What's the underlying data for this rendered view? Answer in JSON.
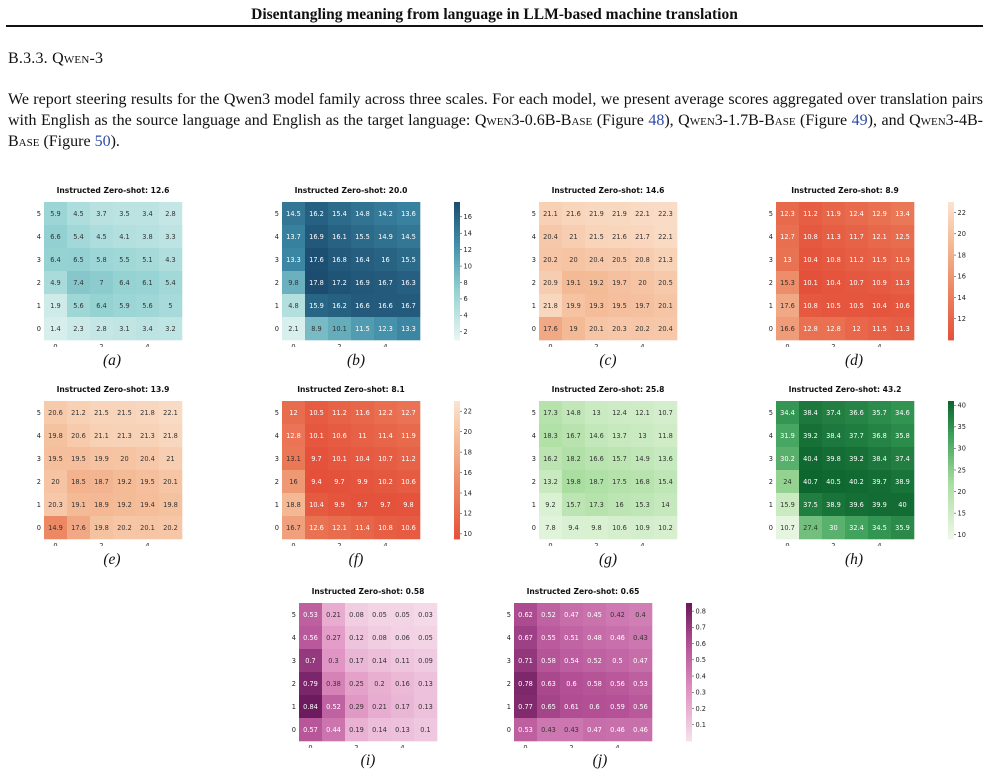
{
  "header": {
    "title": "Disentangling meaning from language in LLM-based machine translation"
  },
  "section_title": {
    "number": "B.3.3.",
    "name": "Qwen-3"
  },
  "paragraph": {
    "p1": "We report steering results for the Qwen3 model family across three scales. For each model, we present average scores aggregated over translation pairs with English as the source language and English as the target language: ",
    "m1": "Qwen3-0.6B-Base",
    "f1_pre": " (Figure ",
    "f1": "48",
    "f1_post": "), ",
    "m2": "Qwen3-1.7B-Base",
    "f2_pre": " (Figure ",
    "f2": "49",
    "f2_post": "), and ",
    "m3": "Qwen3-4B-Base",
    "f3_pre": " (Figure ",
    "f3": "50",
    "f3_post": ")."
  },
  "chart_data": [
    {
      "id": "a",
      "type": "heatmap",
      "title": "Instructed Zero-shot: 12.6",
      "caption": "(a)",
      "rows": [
        "5",
        "4",
        "3",
        "2",
        "1",
        "0"
      ],
      "cols": [
        "0",
        "",
        "2",
        "",
        "4",
        ""
      ],
      "values": [
        [
          5.9,
          4.5,
          3.7,
          3.5,
          3.4,
          2.8
        ],
        [
          6.6,
          5.4,
          4.5,
          4.1,
          3.8,
          3.3
        ],
        [
          6.4,
          6.5,
          5.8,
          5.5,
          5.1,
          4.3
        ],
        [
          4.9,
          7.4,
          7.0,
          6.4,
          6.1,
          5.4
        ],
        [
          1.9,
          5.6,
          6.4,
          5.9,
          5.6,
          5.0
        ],
        [
          1.4,
          2.3,
          2.8,
          3.1,
          3.4,
          3.2
        ]
      ],
      "colormap": "teal",
      "vmin": 0,
      "vmax": 18,
      "colorbar": false,
      "ticks": [],
      "decimals": 1
    },
    {
      "id": "b",
      "type": "heatmap",
      "title": "Instructed Zero-shot: 20.0",
      "caption": "(b)",
      "rows": [
        "5",
        "4",
        "3",
        "2",
        "1",
        "0"
      ],
      "cols": [
        "0",
        "",
        "2",
        "",
        "4",
        ""
      ],
      "values": [
        [
          14.5,
          16.2,
          15.4,
          14.8,
          14.2,
          13.6
        ],
        [
          13.7,
          16.9,
          16.1,
          15.5,
          14.9,
          14.5
        ],
        [
          13.3,
          17.6,
          16.8,
          16.4,
          16.0,
          15.5
        ],
        [
          9.8,
          17.8,
          17.2,
          16.9,
          16.7,
          16.3
        ],
        [
          4.8,
          15.9,
          16.2,
          16.6,
          16.6,
          16.7
        ],
        [
          2.1,
          8.9,
          10.1,
          11.5,
          12.3,
          13.3
        ]
      ],
      "colormap": "teal",
      "vmin": 1,
      "vmax": 17.8,
      "colorbar": true,
      "ticks": [
        2,
        4,
        6,
        8,
        10,
        12,
        14,
        16
      ],
      "decimals": 1
    },
    {
      "id": "c",
      "type": "heatmap",
      "title": "Instructed Zero-shot: 14.6",
      "caption": "(c)",
      "rows": [
        "5",
        "4",
        "3",
        "2",
        "1",
        "0"
      ],
      "cols": [
        "0",
        "",
        "2",
        "",
        "4",
        ""
      ],
      "values": [
        [
          21.1,
          21.6,
          21.9,
          21.9,
          22.1,
          22.3
        ],
        [
          20.4,
          21.0,
          21.5,
          21.6,
          21.7,
          22.1
        ],
        [
          20.2,
          20.0,
          20.4,
          20.5,
          20.8,
          21.3
        ],
        [
          20.9,
          19.1,
          19.2,
          19.7,
          20.0,
          20.5
        ],
        [
          21.8,
          19.9,
          19.3,
          19.5,
          19.7,
          20.1
        ],
        [
          17.6,
          19.0,
          20.1,
          20.3,
          20.2,
          20.4
        ]
      ],
      "colormap": "orange",
      "vmin": 10,
      "vmax": 23,
      "colorbar": false,
      "ticks": [],
      "decimals": 1
    },
    {
      "id": "d",
      "type": "heatmap",
      "title": "Instructed Zero-shot: 8.9",
      "caption": "(d)",
      "rows": [
        "5",
        "4",
        "3",
        "2",
        "1",
        "0"
      ],
      "cols": [
        "0",
        "",
        "2",
        "",
        "4",
        ""
      ],
      "values": [
        [
          12.3,
          11.2,
          11.9,
          12.4,
          12.9,
          13.4
        ],
        [
          12.7,
          10.8,
          11.3,
          11.7,
          12.1,
          12.5
        ],
        [
          13.0,
          10.4,
          10.8,
          11.2,
          11.5,
          11.9
        ],
        [
          15.3,
          10.1,
          10.4,
          10.7,
          10.9,
          11.3
        ],
        [
          17.6,
          10.8,
          10.5,
          10.5,
          10.4,
          10.6
        ],
        [
          16.6,
          12.8,
          12.8,
          12.0,
          11.5,
          11.3
        ]
      ],
      "colormap": "orange",
      "vmin": 10,
      "vmax": 23,
      "colorbar": true,
      "ticks": [
        12,
        14,
        16,
        18,
        20,
        22
      ],
      "decimals": 1
    },
    {
      "id": "e",
      "type": "heatmap",
      "title": "Instructed Zero-shot: 13.9",
      "caption": "(e)",
      "rows": [
        "5",
        "4",
        "3",
        "2",
        "1",
        "0"
      ],
      "cols": [
        "0",
        "",
        "2",
        "",
        "4",
        ""
      ],
      "values": [
        [
          20.6,
          21.2,
          21.5,
          21.5,
          21.8,
          22.1
        ],
        [
          19.8,
          20.6,
          21.1,
          21.3,
          21.3,
          21.8
        ],
        [
          19.5,
          19.5,
          19.9,
          20.0,
          20.4,
          21.0
        ],
        [
          20.0,
          18.5,
          18.7,
          19.2,
          19.5,
          20.1
        ],
        [
          20.3,
          19.1,
          18.9,
          19.2,
          19.4,
          19.8
        ],
        [
          14.9,
          17.6,
          19.8,
          20.2,
          20.1,
          20.2
        ]
      ],
      "colormap": "orange",
      "vmin": 10,
      "vmax": 23,
      "colorbar": false,
      "ticks": [],
      "decimals": 1
    },
    {
      "id": "f",
      "type": "heatmap",
      "title": "Instructed Zero-shot: 8.1",
      "caption": "(f)",
      "rows": [
        "5",
        "4",
        "3",
        "2",
        "1",
        "0"
      ],
      "cols": [
        "0",
        "",
        "2",
        "",
        "4",
        ""
      ],
      "values": [
        [
          12.0,
          10.5,
          11.2,
          11.6,
          12.2,
          12.7
        ],
        [
          12.8,
          10.1,
          10.6,
          11.0,
          11.4,
          11.9
        ],
        [
          13.1,
          9.7,
          10.1,
          10.4,
          10.7,
          11.2
        ],
        [
          16.0,
          9.4,
          9.7,
          9.9,
          10.2,
          10.6
        ],
        [
          18.8,
          10.4,
          9.9,
          9.7,
          9.7,
          9.8
        ],
        [
          16.7,
          12.6,
          12.1,
          11.4,
          10.8,
          10.6
        ]
      ],
      "colormap": "orange",
      "vmin": 9.5,
      "vmax": 23,
      "colorbar": true,
      "ticks": [
        10,
        12,
        14,
        16,
        18,
        20,
        22
      ],
      "decimals": 1
    },
    {
      "id": "g",
      "type": "heatmap",
      "title": "Instructed Zero-shot: 25.8",
      "caption": "(g)",
      "rows": [
        "5",
        "4",
        "3",
        "2",
        "1",
        "0"
      ],
      "cols": [
        "0",
        "",
        "2",
        "",
        "4",
        ""
      ],
      "values": [
        [
          17.3,
          14.8,
          13.0,
          12.4,
          12.1,
          10.7
        ],
        [
          18.3,
          16.7,
          14.6,
          13.7,
          13.0,
          11.8
        ],
        [
          16.2,
          18.2,
          16.6,
          15.7,
          14.9,
          13.6
        ],
        [
          13.2,
          19.8,
          18.7,
          17.5,
          16.8,
          15.4
        ],
        [
          9.2,
          15.7,
          17.3,
          16.0,
          15.3,
          14.0
        ],
        [
          7.8,
          9.4,
          9.8,
          10.6,
          10.9,
          10.2
        ]
      ],
      "colormap": "green",
      "vmin": 5,
      "vmax": 42,
      "colorbar": false,
      "ticks": [],
      "decimals": 1
    },
    {
      "id": "h",
      "type": "heatmap",
      "title": "Instructed Zero-shot: 43.2",
      "caption": "(h)",
      "rows": [
        "5",
        "4",
        "3",
        "2",
        "1",
        "0"
      ],
      "cols": [
        "0",
        "",
        "2",
        "",
        "4",
        ""
      ],
      "values": [
        [
          34.4,
          38.4,
          37.4,
          36.6,
          35.7,
          34.6
        ],
        [
          31.9,
          39.2,
          38.4,
          37.7,
          36.8,
          35.8
        ],
        [
          30.2,
          40.4,
          39.8,
          39.2,
          38.4,
          37.4
        ],
        [
          24.0,
          40.7,
          40.5,
          40.2,
          39.7,
          38.9
        ],
        [
          15.9,
          37.5,
          38.9,
          39.6,
          39.9,
          40.0
        ],
        [
          10.7,
          27.4,
          30.0,
          32.4,
          34.5,
          35.9
        ]
      ],
      "colormap": "green",
      "vmin": 9,
      "vmax": 41,
      "colorbar": true,
      "ticks": [
        10,
        15,
        20,
        25,
        30,
        35,
        40
      ],
      "decimals": 1
    },
    {
      "id": "i",
      "type": "heatmap",
      "title": "Instructed Zero-shot: 0.58",
      "caption": "(i)",
      "rows": [
        "5",
        "4",
        "3",
        "2",
        "1",
        "0"
      ],
      "cols": [
        "0",
        "",
        "2",
        "",
        "4",
        ""
      ],
      "values": [
        [
          0.53,
          0.21,
          0.08,
          0.05,
          0.05,
          0.03
        ],
        [
          0.56,
          0.27,
          0.12,
          0.08,
          0.06,
          0.05
        ],
        [
          0.7,
          0.3,
          0.17,
          0.14,
          0.11,
          0.09
        ],
        [
          0.79,
          0.38,
          0.25,
          0.2,
          0.16,
          0.13
        ],
        [
          0.84,
          0.52,
          0.29,
          0.21,
          0.17,
          0.13
        ],
        [
          0.57,
          0.44,
          0.19,
          0.14,
          0.13,
          0.1
        ]
      ],
      "colormap": "purple",
      "vmin": 0,
      "vmax": 0.85,
      "colorbar": false,
      "ticks": [],
      "decimals": 2
    },
    {
      "id": "j",
      "type": "heatmap",
      "title": "Instructed Zero-shot: 0.65",
      "caption": "(j)",
      "rows": [
        "5",
        "4",
        "3",
        "2",
        "1",
        "0"
      ],
      "cols": [
        "0",
        "",
        "2",
        "",
        "4",
        ""
      ],
      "values": [
        [
          0.62,
          0.52,
          0.47,
          0.45,
          0.42,
          0.4
        ],
        [
          0.67,
          0.55,
          0.51,
          0.48,
          0.46,
          0.43
        ],
        [
          0.71,
          0.58,
          0.54,
          0.52,
          0.5,
          0.47
        ],
        [
          0.78,
          0.63,
          0.6,
          0.58,
          0.56,
          0.53
        ],
        [
          0.77,
          0.65,
          0.61,
          0.6,
          0.59,
          0.56
        ],
        [
          0.53,
          0.43,
          0.43,
          0.47,
          0.46,
          0.46
        ]
      ],
      "colormap": "purple",
      "vmin": 0,
      "vmax": 0.85,
      "colorbar": true,
      "ticks": [
        0.1,
        0.2,
        0.3,
        0.4,
        0.5,
        0.6,
        0.7,
        0.8
      ],
      "decimals": 2
    }
  ]
}
